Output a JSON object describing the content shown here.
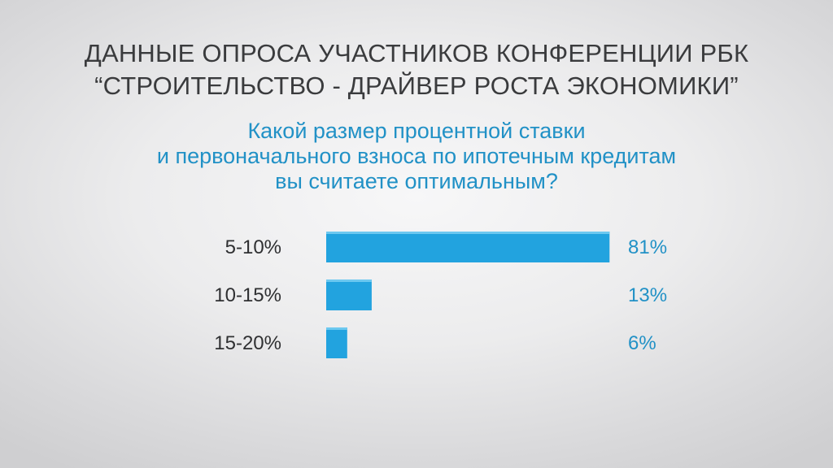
{
  "header": {
    "line1": "ДАННЫЕ ОПРОСА УЧАСТНИКОВ КОНФЕРЕНЦИИ РБК",
    "line2": "“СТРОИТЕЛЬСТВО - ДРАЙВЕР РОСТА ЭКОНОМИКИ”"
  },
  "question": {
    "line1": "Какой размер процентной ставки",
    "line2": "и первоначального взноса по ипотечным кредитам",
    "line3": "вы считаете оптимальным?"
  },
  "colors": {
    "bar": "#22a3df",
    "value_text": "#2191c6",
    "header_text": "#3a3b3d"
  },
  "chart_data": {
    "type": "bar",
    "orientation": "horizontal",
    "title": "Какой размер процентной ставки и первоначального взноса по ипотечным кредитам вы считаете оптимальным?",
    "categories": [
      "5-10%",
      "10-15%",
      "15-20%"
    ],
    "values": [
      81,
      13,
      6
    ],
    "value_labels": [
      "81%",
      "13%",
      "6%"
    ],
    "unit": "%",
    "grid": false,
    "legend": "none"
  }
}
